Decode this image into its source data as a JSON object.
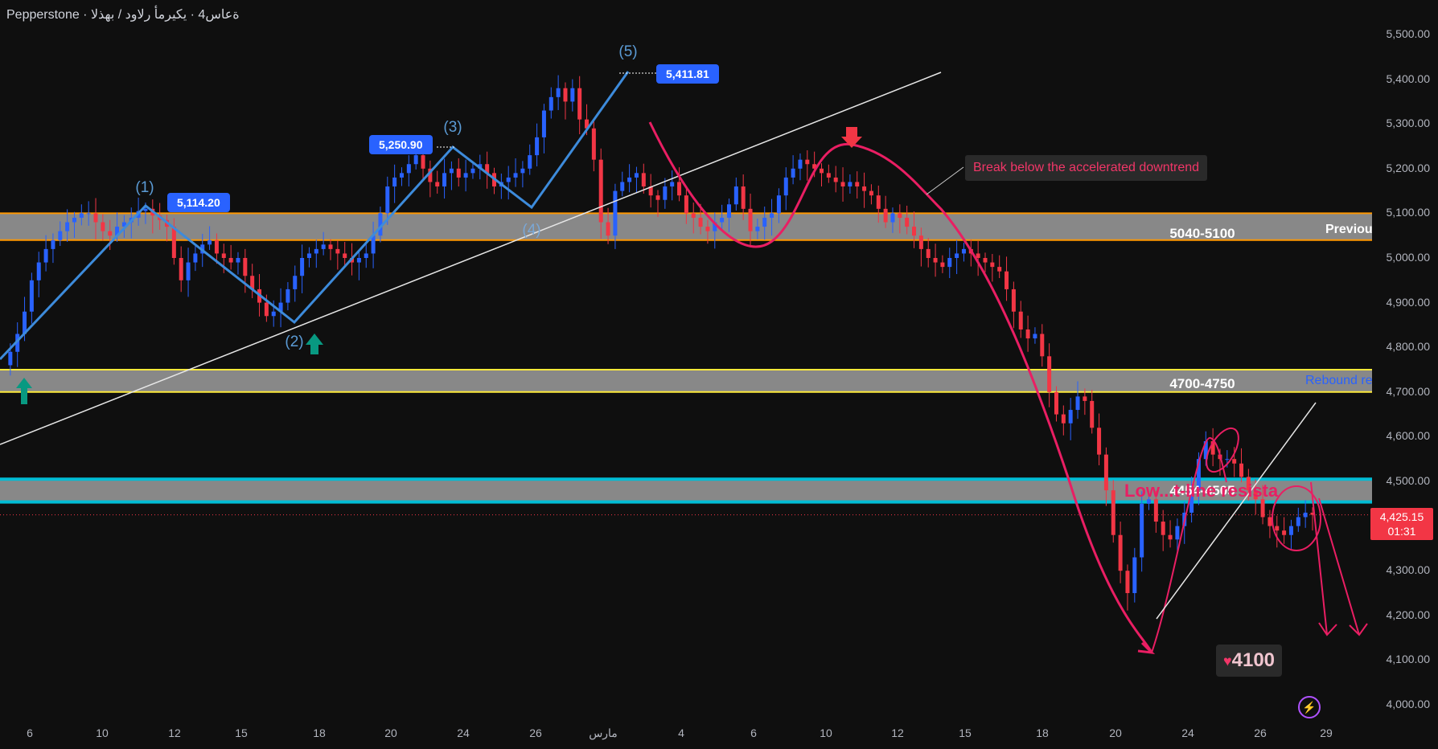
{
  "header": {
    "broker": "Pepperstone",
    "separator": " · ",
    "symbol": "ةعاس4 · يكيرمأ رلاود / بهذلا"
  },
  "price_badge": {
    "price": "4,425.15",
    "countdown": "01:31"
  },
  "colors": {
    "background": "#0f0f0f",
    "bull": "#2962ff",
    "bear": "#f23645",
    "wave": "#3d8bdb",
    "annotation": "#e91e63",
    "zone_fill": "#9e9e9e",
    "zone_orange": "#ff9800",
    "zone_yellow": "#ffeb3b",
    "zone_cyan": "#00bcd4",
    "up_arrow": "#089981"
  },
  "annotations": {
    "break_note": "Break below the accelerated downtrend",
    "target": "4100",
    "zone_upper": "5040-5100",
    "zone_mid": "4700-4750",
    "zone_low": "4454-4505",
    "edge_upper": "Previou",
    "edge_mid": "Rebound re",
    "edge_low": "Low...t-line resista"
  },
  "chart_data": {
    "type": "line",
    "title": "",
    "xlabel": "",
    "ylabel": "",
    "ylim": [
      3990,
      5530
    ],
    "y_ticks": [
      "5,500.00",
      "5,400.00",
      "5,300.00",
      "5,200.00",
      "5,100.00",
      "5,000.00",
      "4,900.00",
      "4,800.00",
      "4,700.00",
      "4,600.00",
      "4,500.00",
      "4,400.00",
      "4,300.00",
      "4,200.00",
      "4,100.00",
      "4,000.00"
    ],
    "x_ticks": [
      "6",
      "10",
      "12",
      "15",
      "18",
      "20",
      "24",
      "26",
      "مارس",
      "4",
      "6",
      "10",
      "12",
      "15",
      "18",
      "20",
      "24",
      "26",
      "29"
    ],
    "current_price": 4425.15,
    "zones": [
      {
        "label": "5040-5100",
        "low": 5040,
        "high": 5100
      },
      {
        "label": "4700-4750",
        "low": 4700,
        "high": 4750
      },
      {
        "label": "4454-4505",
        "low": 4454,
        "high": 4505
      }
    ],
    "elliott_wave": [
      {
        "label": "(1)",
        "value": 5114.2,
        "value_label": "5,114.20"
      },
      {
        "label": "(2)",
        "value": 4860
      },
      {
        "label": "(3)",
        "value": 5250.9,
        "value_label": "5,250.90"
      },
      {
        "label": "(4)",
        "value": 5110
      },
      {
        "label": "(5)",
        "value": 5411.81,
        "value_label": "5,411.81"
      }
    ],
    "series": [
      {
        "values": [
          4760,
          4790,
          4830,
          4880,
          4950,
          4990,
          5020,
          5040,
          5060,
          5080,
          5090,
          5100,
          5100,
          5080,
          5060,
          5050,
          5070,
          5080,
          5090,
          5105,
          5110,
          5095,
          5085,
          5070,
          5000,
          4950,
          4990,
          5010,
          5030,
          5040,
          5010,
          5000,
          4990,
          5000,
          4960,
          4930,
          4900,
          4870,
          4880,
          4900,
          4930,
          4960,
          5000,
          5010,
          5020,
          5030,
          5020,
          5010,
          5000,
          4990,
          5000,
          5010,
          5050,
          5100,
          5160,
          5180,
          5190,
          5210,
          5230,
          5200,
          5170,
          5160,
          5190,
          5200,
          5180,
          5190,
          5200,
          5210,
          5190,
          5160,
          5170,
          5180,
          5190,
          5200,
          5230,
          5270,
          5330,
          5360,
          5380,
          5350,
          5380,
          5310,
          5290,
          5220,
          5080,
          5050,
          5150,
          5170,
          5180,
          5190,
          5160,
          5140,
          5130,
          5160,
          5170,
          5140,
          5100,
          5090,
          5070,
          5060,
          5080,
          5090,
          5120,
          5160,
          5110,
          5060,
          5070,
          5090,
          5100,
          5140,
          5180,
          5200,
          5220,
          5210,
          5200,
          5190,
          5180,
          5170,
          5160,
          5170,
          5160,
          5150,
          5140,
          5110,
          5080,
          5100,
          5090,
          5070,
          5050,
          5020,
          5000,
          4990,
          4980,
          5000,
          5010,
          5020,
          5010,
          5000,
          4990,
          4980,
          4970,
          4930,
          4880,
          4840,
          4820,
          4830,
          4780,
          4700,
          4650,
          4630,
          4660,
          4690,
          4680,
          4620,
          4560,
          4480,
          4380,
          4300,
          4250,
          4330,
          4450,
          4460,
          4410,
          4380,
          4370,
          4400,
          4430,
          4480,
          4550,
          4590,
          4560,
          4550,
          4550,
          4540,
          4510,
          4480,
          4460,
          4420,
          4400,
          4390,
          4380,
          4400,
          4420,
          4430,
          4425.15
        ]
      }
    ]
  }
}
